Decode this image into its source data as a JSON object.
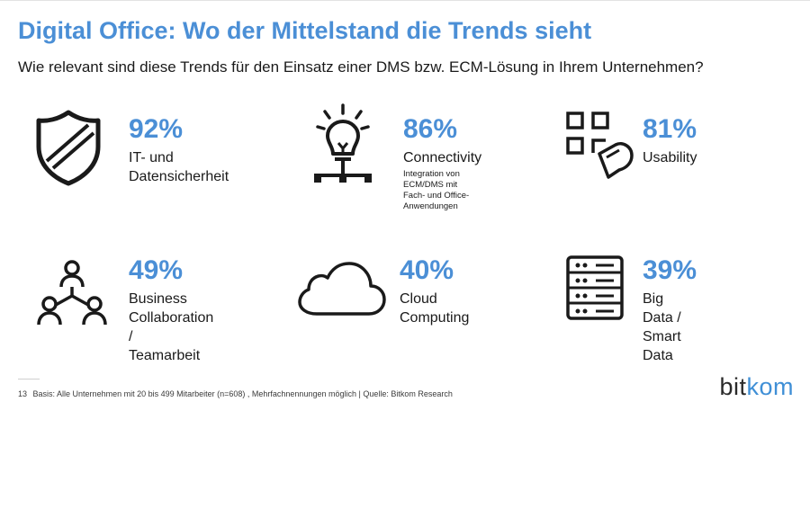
{
  "slide": {
    "title": "Digital Office: Wo der Mittelstand die Trends sieht",
    "subtitle": "Wie relevant sind diese Trends für den Einsatz einer DMS bzw. ECM-Lösung in Ihrem Unternehmen?"
  },
  "trends": [
    {
      "percent": "92%",
      "label": "IT- und\nDatensicherheit",
      "sublabel": "",
      "icon": "shield-icon"
    },
    {
      "percent": "86%",
      "label": "Connectivity",
      "sublabel": "Integration von ECM/DMS mit\nFach- und Office-Anwendungen",
      "icon": "lightbulb-icon"
    },
    {
      "percent": "81%",
      "label": "Usability",
      "sublabel": "",
      "icon": "touch-grid-icon"
    },
    {
      "percent": "49%",
      "label": "Business\nCollaboration /\nTeamarbeit",
      "sublabel": "",
      "icon": "team-icon"
    },
    {
      "percent": "40%",
      "label": "Cloud Computing",
      "sublabel": "",
      "icon": "cloud-icon"
    },
    {
      "percent": "39%",
      "label": "Big Data /\nSmart Data",
      "sublabel": "",
      "icon": "server-icon"
    }
  ],
  "footer": {
    "page_number": "13",
    "source": "Basis: Alle Unternehmen mit 20 bis 499 Mitarbeiter (n=608) , Mehrfachnennungen möglich | Quelle: Bitkom Research"
  },
  "logo": {
    "part1": "bit",
    "part2": "kom"
  },
  "colors": {
    "accent": "#4b8fd6",
    "text": "#1a1a1a",
    "logo_blue": "#3f8fd6"
  }
}
